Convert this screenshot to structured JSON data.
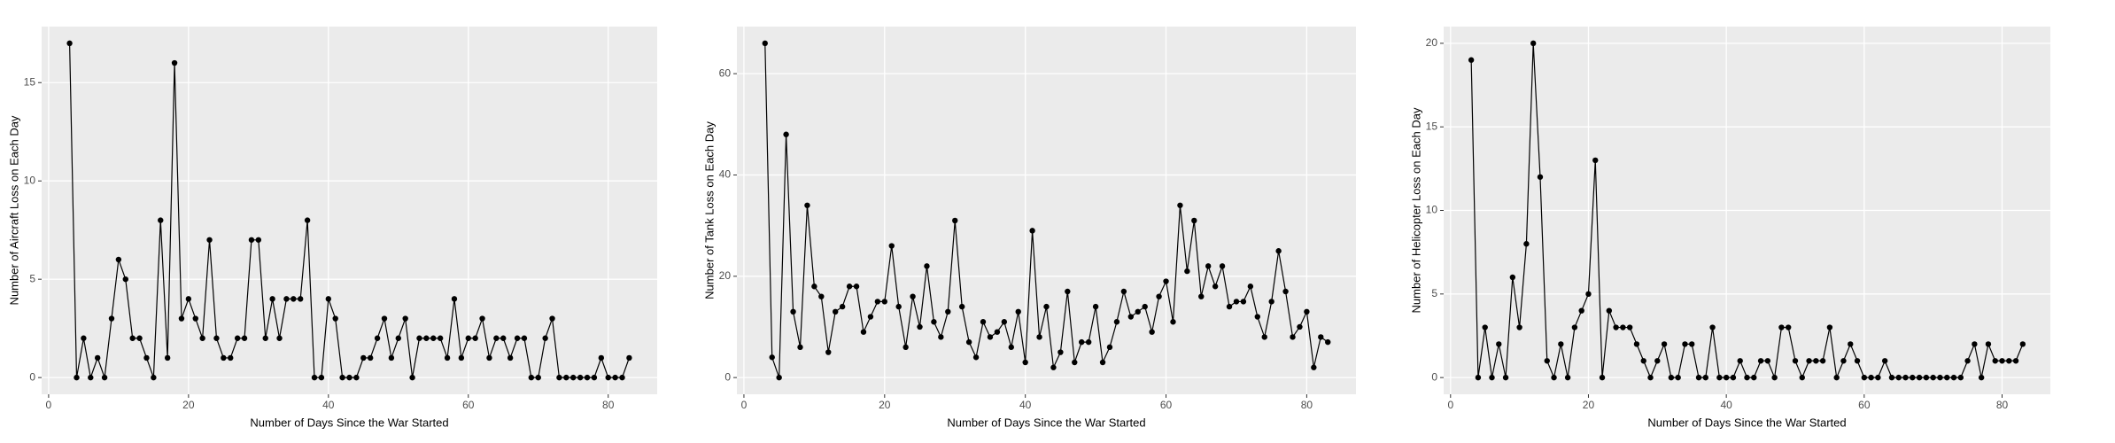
{
  "chart_data": [
    {
      "type": "line",
      "x_label": "Number of Days Since the War Started",
      "y_label": "Number of Aircraft Loss on Each Day",
      "color": "#000000",
      "grid": true,
      "x": [
        3,
        4,
        5,
        6,
        7,
        8,
        9,
        10,
        11,
        12,
        13,
        14,
        15,
        16,
        17,
        18,
        19,
        20,
        21,
        22,
        23,
        24,
        25,
        26,
        27,
        28,
        29,
        30,
        31,
        32,
        33,
        34,
        35,
        36,
        37,
        38,
        39,
        40,
        41,
        42,
        43,
        44,
        45,
        46,
        47,
        48,
        49,
        50,
        51,
        52,
        53,
        54,
        55,
        56,
        57,
        58,
        59,
        60,
        61,
        62,
        63,
        64,
        65,
        66,
        67,
        68,
        69,
        70,
        71,
        72,
        73,
        74,
        75,
        76,
        77,
        78,
        79,
        80,
        81,
        82,
        83
      ],
      "values": [
        17,
        0,
        2,
        0,
        1,
        0,
        3,
        6,
        5,
        2,
        2,
        1,
        0,
        8,
        1,
        16,
        3,
        4,
        3,
        2,
        7,
        2,
        1,
        1,
        2,
        2,
        7,
        7,
        2,
        4,
        2,
        4,
        4,
        4,
        8,
        0,
        0,
        4,
        3,
        0,
        0,
        0,
        1,
        1,
        2,
        3,
        1,
        2,
        3,
        0,
        2,
        2,
        2,
        2,
        1,
        4,
        1,
        2,
        2,
        3,
        1,
        2,
        2,
        1,
        2,
        2,
        0,
        0,
        2,
        3,
        0,
        0,
        0,
        0,
        0,
        0,
        1,
        0,
        0,
        0,
        1
      ],
      "xlim": [
        -1,
        87
      ],
      "xticks": [
        0,
        20,
        40,
        60,
        80
      ],
      "ylim": [
        -0.85,
        17.85
      ],
      "yticks": [
        0,
        5,
        10,
        15
      ]
    },
    {
      "type": "line",
      "x_label": "Number of Days Since the War Started",
      "y_label": "Number of Tank Loss on Each Day",
      "color": "#000000",
      "grid": true,
      "x": [
        3,
        4,
        5,
        6,
        7,
        8,
        9,
        10,
        11,
        12,
        13,
        14,
        15,
        16,
        17,
        18,
        19,
        20,
        21,
        22,
        23,
        24,
        25,
        26,
        27,
        28,
        29,
        30,
        31,
        32,
        33,
        34,
        35,
        36,
        37,
        38,
        39,
        40,
        41,
        42,
        43,
        44,
        45,
        46,
        47,
        48,
        49,
        50,
        51,
        52,
        53,
        54,
        55,
        56,
        57,
        58,
        59,
        60,
        61,
        62,
        63,
        64,
        65,
        66,
        67,
        68,
        69,
        70,
        71,
        72,
        73,
        74,
        75,
        76,
        77,
        78,
        79,
        80,
        81,
        82,
        83
      ],
      "values": [
        66,
        4,
        0,
        48,
        13,
        6,
        34,
        18,
        16,
        5,
        13,
        14,
        18,
        18,
        9,
        12,
        15,
        15,
        26,
        14,
        6,
        16,
        10,
        22,
        11,
        8,
        13,
        31,
        14,
        7,
        4,
        11,
        8,
        9,
        11,
        6,
        13,
        3,
        29,
        8,
        14,
        2,
        5,
        17,
        3,
        7,
        7,
        14,
        3,
        6,
        11,
        17,
        12,
        13,
        14,
        9,
        16,
        19,
        11,
        34,
        21,
        31,
        16,
        22,
        18,
        22,
        14,
        15,
        15,
        18,
        12,
        8,
        15,
        25,
        17,
        8,
        10,
        13,
        2,
        8,
        7
      ],
      "xlim": [
        -1,
        87
      ],
      "xticks": [
        0,
        20,
        40,
        60,
        80
      ],
      "ylim": [
        -3.3,
        69.3
      ],
      "yticks": [
        0,
        20,
        40,
        60
      ]
    },
    {
      "type": "line",
      "x_label": "Number of Days Since the War Started",
      "y_label": "Number of Helicopter Loss on Each Day",
      "color": "#000000",
      "grid": true,
      "x": [
        3,
        4,
        5,
        6,
        7,
        8,
        9,
        10,
        11,
        12,
        13,
        14,
        15,
        16,
        17,
        18,
        19,
        20,
        21,
        22,
        23,
        24,
        25,
        26,
        27,
        28,
        29,
        30,
        31,
        32,
        33,
        34,
        35,
        36,
        37,
        38,
        39,
        40,
        41,
        42,
        43,
        44,
        45,
        46,
        47,
        48,
        49,
        50,
        51,
        52,
        53,
        54,
        55,
        56,
        57,
        58,
        59,
        60,
        61,
        62,
        63,
        64,
        65,
        66,
        67,
        68,
        69,
        70,
        71,
        72,
        73,
        74,
        75,
        76,
        77,
        78,
        79,
        80,
        81,
        82,
        83
      ],
      "values": [
        19,
        0,
        3,
        0,
        2,
        0,
        6,
        3,
        8,
        20,
        12,
        1,
        0,
        2,
        0,
        3,
        4,
        5,
        13,
        0,
        4,
        3,
        3,
        3,
        2,
        1,
        0,
        1,
        2,
        0,
        0,
        2,
        2,
        0,
        0,
        3,
        0,
        0,
        0,
        1,
        0,
        0,
        1,
        1,
        0,
        3,
        3,
        1,
        0,
        1,
        1,
        1,
        3,
        0,
        1,
        2,
        1,
        0,
        0,
        0,
        1,
        0,
        0,
        0,
        0,
        0,
        0,
        0,
        0,
        0,
        0,
        0,
        1,
        2,
        0,
        2,
        1,
        1,
        1,
        1,
        2
      ],
      "xlim": [
        -1,
        87
      ],
      "xticks": [
        0,
        20,
        40,
        60,
        80
      ],
      "ylim": [
        -1,
        21
      ],
      "yticks": [
        0,
        5,
        10,
        15,
        20
      ]
    }
  ]
}
